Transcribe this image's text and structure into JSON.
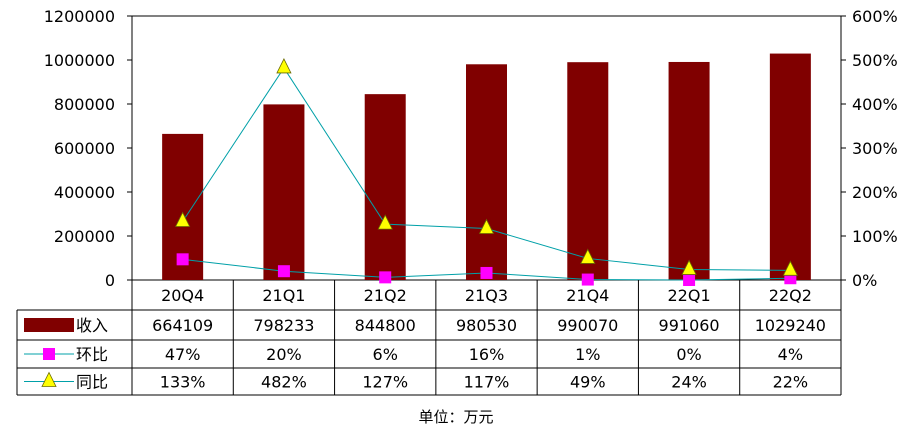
{
  "chart_data": {
    "type": "bar",
    "categories": [
      "20Q4",
      "21Q1",
      "21Q2",
      "21Q3",
      "21Q4",
      "22Q1",
      "22Q2"
    ],
    "series": [
      {
        "name": "收入",
        "kind": "bar",
        "axis": "left",
        "color": "#800000",
        "values": [
          664109,
          798233,
          844800,
          980530,
          990070,
          991060,
          1029240
        ],
        "labels": [
          "664109",
          "798233",
          "844800",
          "980530",
          "990070",
          "991060",
          "1029240"
        ]
      },
      {
        "name": "环比",
        "kind": "line",
        "axis": "right",
        "color": "#ff00ff",
        "marker": "square",
        "values": [
          47,
          20,
          6,
          16,
          1,
          0,
          4
        ],
        "labels": [
          "47%",
          "20%",
          "6%",
          "16%",
          "1%",
          "0%",
          "4%"
        ]
      },
      {
        "name": "同比",
        "kind": "line",
        "axis": "right",
        "color": "#00a0a8",
        "marker": "triangle",
        "marker_color": "#ffff00",
        "values": [
          133,
          482,
          127,
          117,
          49,
          24,
          22
        ],
        "labels": [
          "133%",
          "482%",
          "127%",
          "117%",
          "49%",
          "24%",
          "22%"
        ]
      }
    ],
    "ylim_left": [
      0,
      1200000
    ],
    "yticks_left": [
      "0",
      "200000",
      "400000",
      "600000",
      "800000",
      "1000000",
      "1200000"
    ],
    "ylim_right": [
      0,
      600
    ],
    "yticks_right": [
      "0%",
      "100%",
      "200%",
      "300%",
      "400%",
      "500%",
      "600%"
    ],
    "footnote": "单位：万元",
    "grid": false,
    "legend": "data-table"
  }
}
